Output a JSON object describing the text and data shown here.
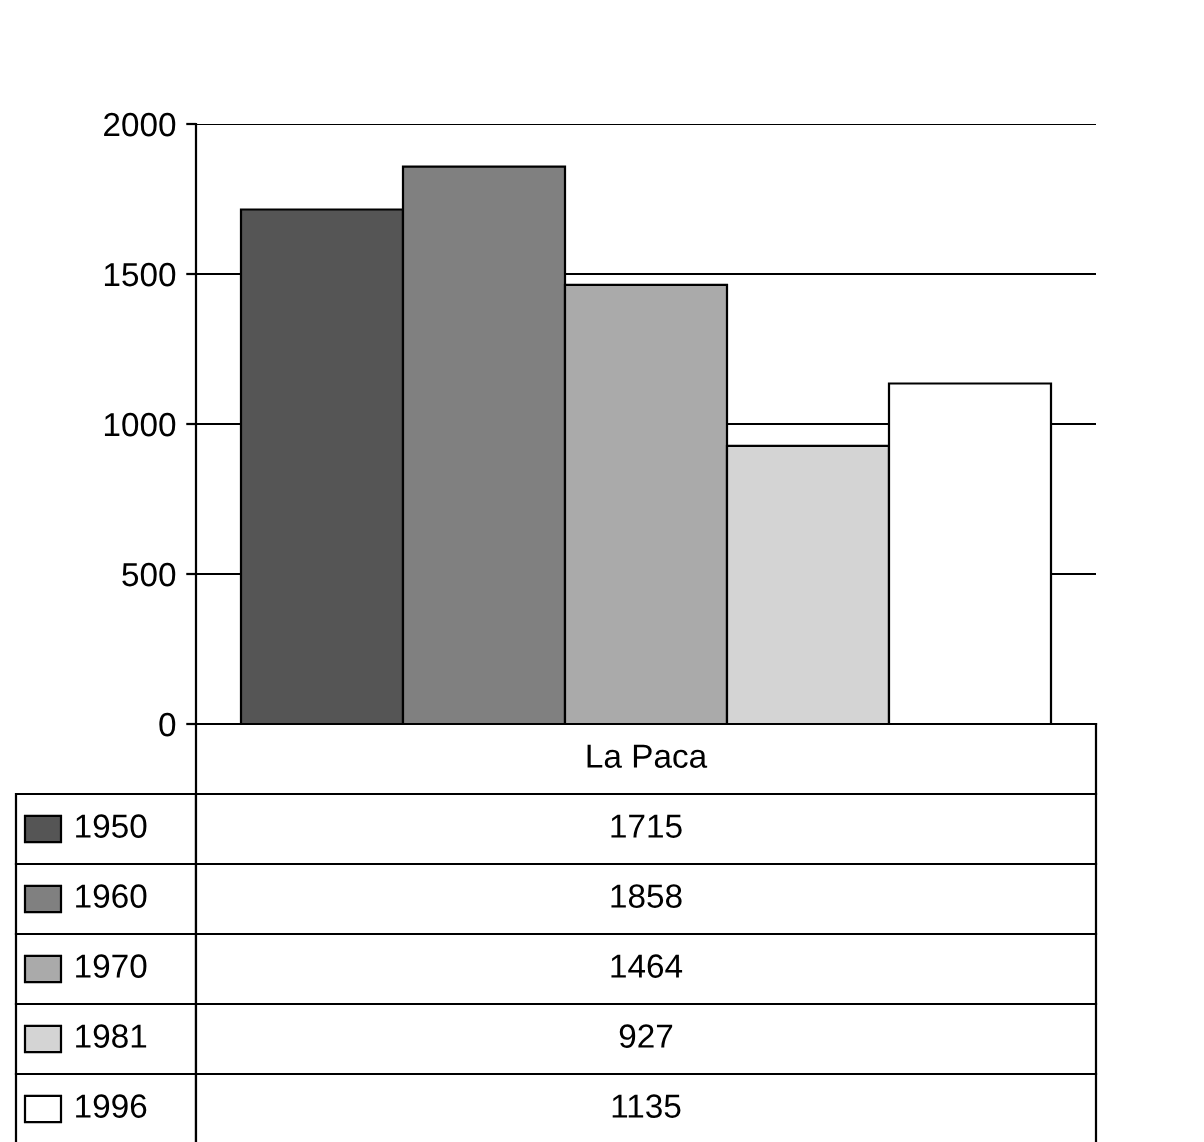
{
  "chart_data": {
    "type": "bar",
    "categories": [
      "La Paca"
    ],
    "series": [
      {
        "name": "1950",
        "color": "#555555",
        "values": [
          1715
        ]
      },
      {
        "name": "1960",
        "color": "#808080",
        "values": [
          1858
        ]
      },
      {
        "name": "1970",
        "color": "#aaaaaa",
        "values": [
          1464
        ]
      },
      {
        "name": "1981",
        "color": "#d4d4d4",
        "values": [
          927
        ]
      },
      {
        "name": "1996",
        "color": "#ffffff",
        "values": [
          1135
        ]
      }
    ],
    "ylim": [
      0,
      2000
    ],
    "yticks": [
      0,
      500,
      1000,
      1500,
      2000
    ],
    "grid": "y",
    "legend": "bottom",
    "annotations": [
      "1715",
      "1858",
      "1464",
      "927",
      "1135"
    ]
  }
}
